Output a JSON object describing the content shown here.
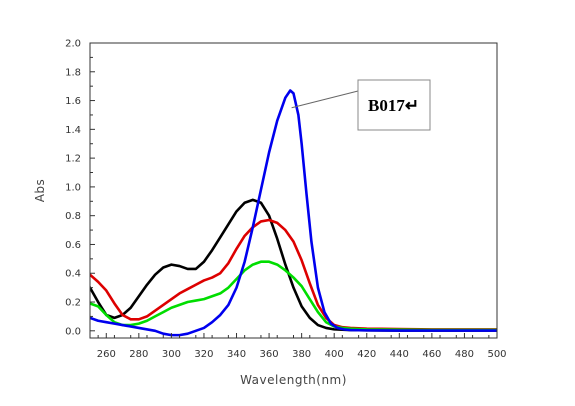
{
  "chart_data": {
    "type": "line",
    "xlabel": "Wavelength(nm)",
    "ylabel": "Abs",
    "xlim": [
      250,
      500
    ],
    "ylim": [
      -0.05,
      2.0
    ],
    "x_ticks": [
      260,
      280,
      300,
      320,
      340,
      360,
      380,
      400,
      420,
      440,
      460,
      480,
      500
    ],
    "y_ticks": [
      0.0,
      0.2,
      0.4,
      0.6,
      0.8,
      1.0,
      1.2,
      1.4,
      1.6,
      1.8,
      2.0
    ],
    "x_tick_labels": [
      "260",
      "280",
      "300",
      "320",
      "340",
      "360",
      "380",
      "400",
      "420",
      "440",
      "460",
      "480",
      "500"
    ],
    "y_tick_labels": [
      "0.0",
      "0.2",
      "0.4",
      "0.6",
      "0.8",
      "1.0",
      "1.2",
      "1.4",
      "1.6",
      "1.8",
      "2.0"
    ],
    "grid": false,
    "annotation": {
      "text": "B017↵",
      "target_x": 372,
      "target_y": 1.55
    },
    "series": [
      {
        "color": "#000000",
        "x": [
          250,
          255,
          260,
          265,
          270,
          275,
          280,
          285,
          290,
          295,
          300,
          305,
          310,
          315,
          320,
          325,
          330,
          335,
          340,
          345,
          350,
          355,
          360,
          365,
          370,
          375,
          380,
          385,
          390,
          395,
          400,
          410,
          420,
          440,
          460,
          480,
          500
        ],
        "y": [
          0.3,
          0.2,
          0.11,
          0.09,
          0.11,
          0.16,
          0.24,
          0.32,
          0.39,
          0.44,
          0.46,
          0.45,
          0.43,
          0.43,
          0.48,
          0.56,
          0.65,
          0.74,
          0.83,
          0.89,
          0.91,
          0.89,
          0.8,
          0.64,
          0.46,
          0.3,
          0.17,
          0.09,
          0.04,
          0.02,
          0.01,
          0.005,
          0.003,
          0.002,
          0.002,
          0.002,
          0.002
        ]
      },
      {
        "color": "#dd0000",
        "x": [
          250,
          255,
          260,
          265,
          270,
          275,
          280,
          285,
          290,
          295,
          300,
          305,
          310,
          315,
          320,
          325,
          330,
          335,
          340,
          345,
          350,
          355,
          360,
          365,
          370,
          375,
          380,
          385,
          390,
          395,
          400,
          405,
          410,
          420,
          440,
          460,
          480,
          500
        ],
        "y": [
          0.39,
          0.34,
          0.28,
          0.19,
          0.11,
          0.08,
          0.08,
          0.1,
          0.14,
          0.18,
          0.22,
          0.26,
          0.29,
          0.32,
          0.35,
          0.37,
          0.4,
          0.47,
          0.57,
          0.66,
          0.72,
          0.76,
          0.77,
          0.75,
          0.7,
          0.62,
          0.49,
          0.33,
          0.18,
          0.09,
          0.04,
          0.025,
          0.02,
          0.015,
          0.012,
          0.01,
          0.01,
          0.01
        ]
      },
      {
        "color": "#00dd00",
        "x": [
          250,
          255,
          260,
          265,
          270,
          275,
          280,
          285,
          290,
          295,
          300,
          305,
          310,
          315,
          320,
          325,
          330,
          335,
          340,
          345,
          350,
          355,
          360,
          365,
          370,
          375,
          380,
          385,
          390,
          395,
          400,
          405,
          410,
          420,
          440,
          460,
          480,
          500
        ],
        "y": [
          0.19,
          0.17,
          0.11,
          0.06,
          0.04,
          0.04,
          0.05,
          0.07,
          0.1,
          0.13,
          0.16,
          0.18,
          0.2,
          0.21,
          0.22,
          0.24,
          0.26,
          0.3,
          0.36,
          0.42,
          0.46,
          0.48,
          0.48,
          0.46,
          0.42,
          0.37,
          0.31,
          0.22,
          0.13,
          0.06,
          0.03,
          0.02,
          0.015,
          0.01,
          0.008,
          0.006,
          0.006,
          0.006
        ]
      },
      {
        "color": "#0000ee",
        "x": [
          250,
          255,
          260,
          265,
          270,
          280,
          290,
          295,
          300,
          305,
          310,
          315,
          320,
          325,
          330,
          335,
          340,
          345,
          350,
          355,
          360,
          365,
          370,
          373,
          375,
          378,
          380,
          383,
          386,
          390,
          394,
          398,
          402,
          406,
          410,
          420,
          440,
          460,
          480,
          500
        ],
        "y": [
          0.09,
          0.07,
          0.06,
          0.05,
          0.04,
          0.02,
          0.0,
          -0.02,
          -0.03,
          -0.03,
          -0.02,
          0.0,
          0.02,
          0.06,
          0.11,
          0.18,
          0.3,
          0.48,
          0.72,
          0.98,
          1.24,
          1.46,
          1.62,
          1.67,
          1.65,
          1.5,
          1.3,
          0.95,
          0.62,
          0.3,
          0.13,
          0.05,
          0.02,
          0.01,
          0.005,
          0.003,
          0.002,
          0.002,
          0.002,
          0.002
        ]
      }
    ]
  }
}
